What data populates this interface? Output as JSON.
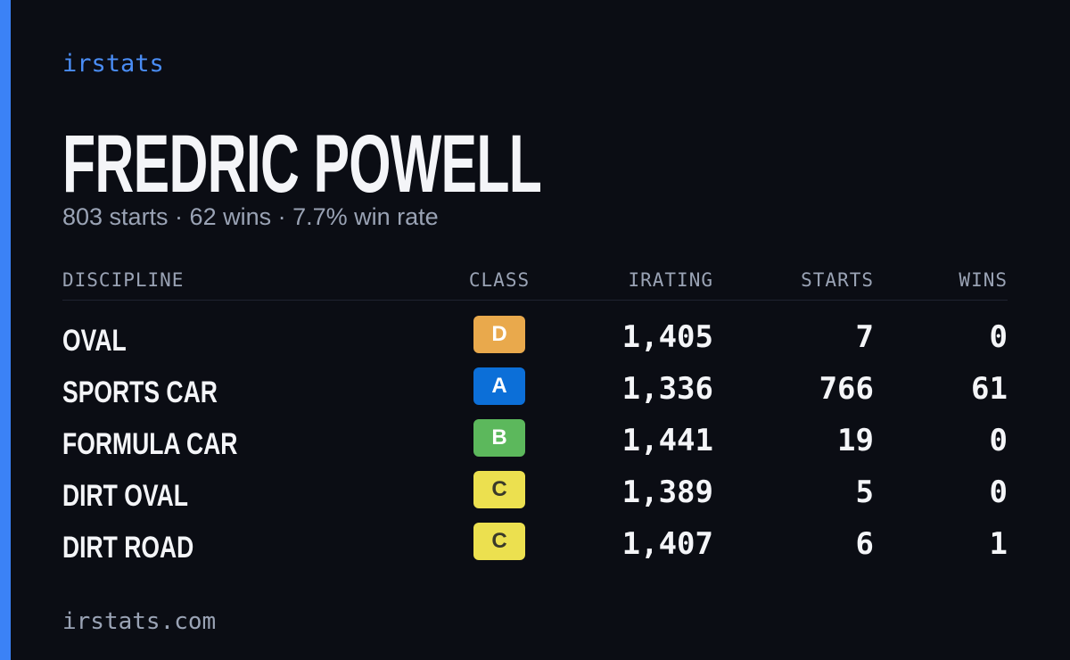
{
  "brand": "irstats",
  "driver": {
    "name": "FREDRIC POWELL",
    "summary": "803 starts · 62 wins · 7.7% win rate"
  },
  "table": {
    "headers": [
      "DISCIPLINE",
      "CLASS",
      "IRATING",
      "STARTS",
      "WINS"
    ],
    "rows": [
      [
        "OVAL",
        "D",
        "1,405",
        "7",
        "0"
      ],
      [
        "SPORTS CAR",
        "A",
        "1,336",
        "766",
        "61"
      ],
      [
        "FORMULA CAR",
        "B",
        "1,441",
        "19",
        "0"
      ],
      [
        "DIRT OVAL",
        "C",
        "1,389",
        "5",
        "0"
      ],
      [
        "DIRT ROAD",
        "C",
        "1,407",
        "6",
        "1"
      ]
    ],
    "class_colors": [
      "#e9a94c",
      "#0c6fd8",
      "#5cb85c",
      "#ece04f",
      "#ece04f"
    ],
    "class_text_colors": [
      "#ffffff",
      "#ffffff",
      "#ffffff",
      "#3a3a2a",
      "#3a3a2a"
    ]
  },
  "footer": "irstats.com"
}
